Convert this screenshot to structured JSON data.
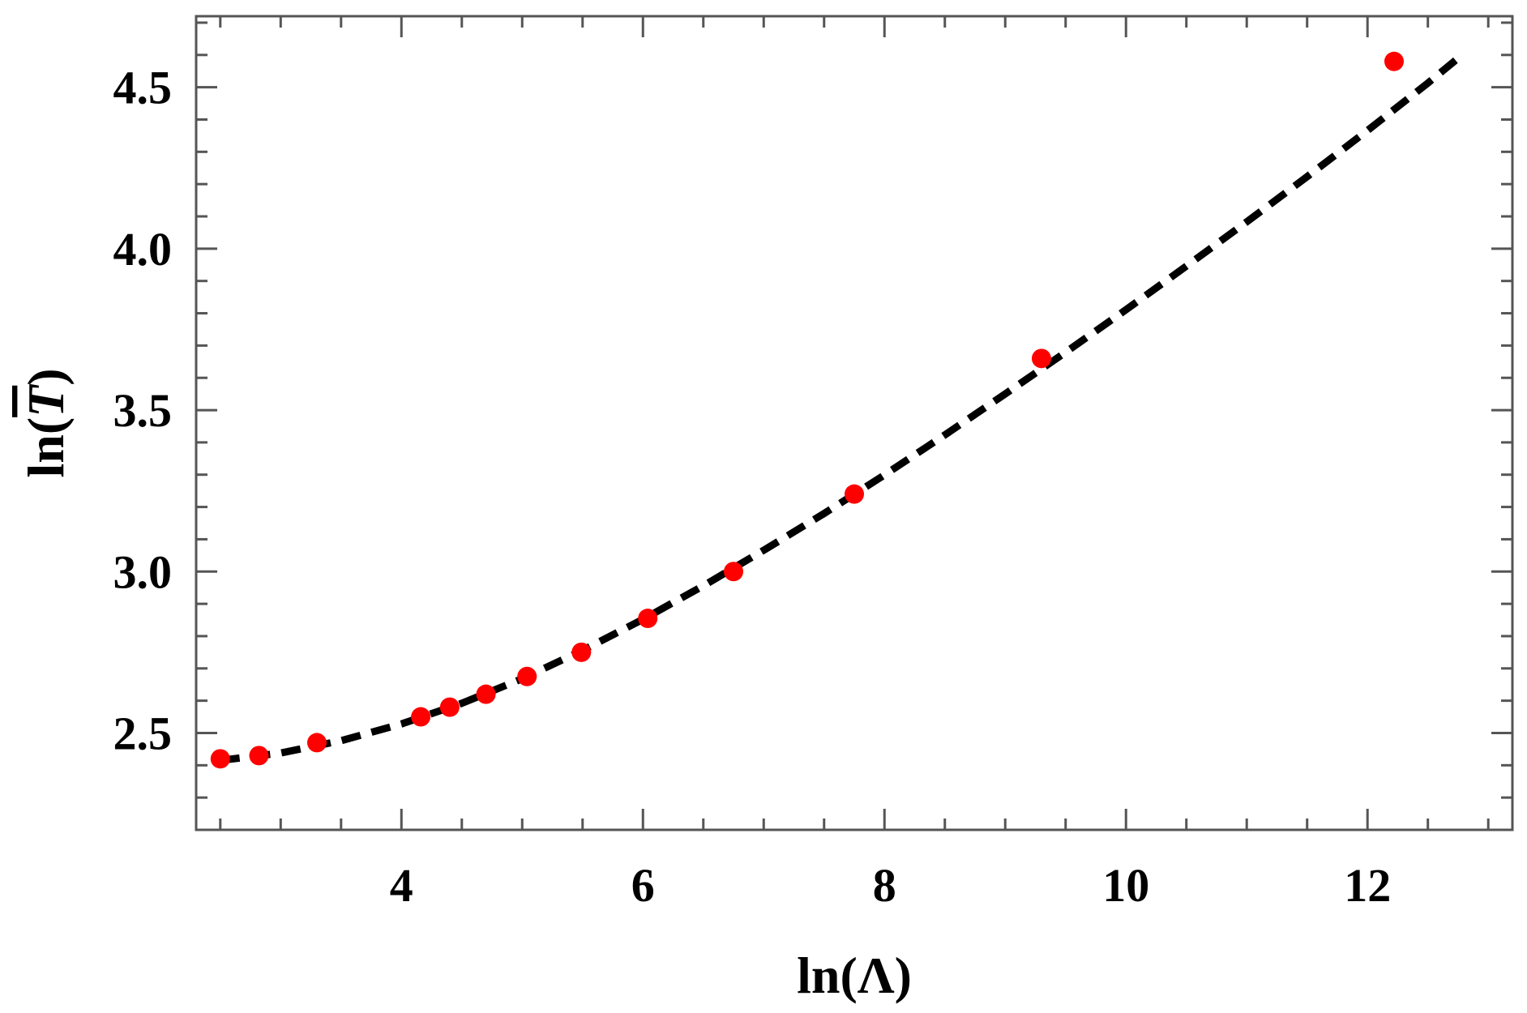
{
  "chart_data": {
    "type": "scatter",
    "xlabel": "ln(Λ)",
    "ylabel": "ln(T)",
    "ylabel_parts": {
      "pre": "ln(",
      "var": "T",
      "post": ")"
    },
    "xlim": [
      2.3,
      13.2
    ],
    "ylim": [
      2.2,
      4.72
    ],
    "x_ticks": [
      "4",
      "6",
      "8",
      "10",
      "12"
    ],
    "x_tick_values": [
      4,
      6,
      8,
      10,
      12
    ],
    "y_ticks": [
      "2.5",
      "3.0",
      "3.5",
      "4.0",
      "4.5"
    ],
    "y_tick_values": [
      2.5,
      3.0,
      3.5,
      4.0,
      4.5
    ],
    "grid": false,
    "colors": {
      "points": "#ff0000",
      "fit": "#000000",
      "frame": "#555555"
    },
    "points": [
      {
        "x": 2.5,
        "y": 2.42
      },
      {
        "x": 2.82,
        "y": 2.43
      },
      {
        "x": 3.3,
        "y": 2.47
      },
      {
        "x": 4.16,
        "y": 2.55
      },
      {
        "x": 4.4,
        "y": 2.58
      },
      {
        "x": 4.7,
        "y": 2.62
      },
      {
        "x": 5.04,
        "y": 2.675
      },
      {
        "x": 5.49,
        "y": 2.75
      },
      {
        "x": 6.04,
        "y": 2.855
      },
      {
        "x": 6.75,
        "y": 3.0
      },
      {
        "x": 7.75,
        "y": 3.24
      },
      {
        "x": 9.3,
        "y": 3.66
      },
      {
        "x": 12.22,
        "y": 4.58
      }
    ],
    "fit_line": {
      "style": "dashed",
      "x": [
        2.5,
        3.0,
        3.5,
        4.0,
        4.5,
        5.0,
        5.5,
        6.0,
        6.5,
        7.0,
        7.5,
        8.0,
        8.5,
        9.0,
        9.5,
        10.0,
        10.5,
        11.0,
        11.5,
        12.0,
        12.5,
        12.75
      ],
      "y": [
        2.415,
        2.438,
        2.476,
        2.528,
        2.592,
        2.668,
        2.756,
        2.852,
        2.956,
        3.066,
        3.18,
        3.299,
        3.423,
        3.55,
        3.679,
        3.811,
        3.946,
        4.083,
        4.223,
        4.366,
        4.513,
        4.59
      ]
    }
  }
}
